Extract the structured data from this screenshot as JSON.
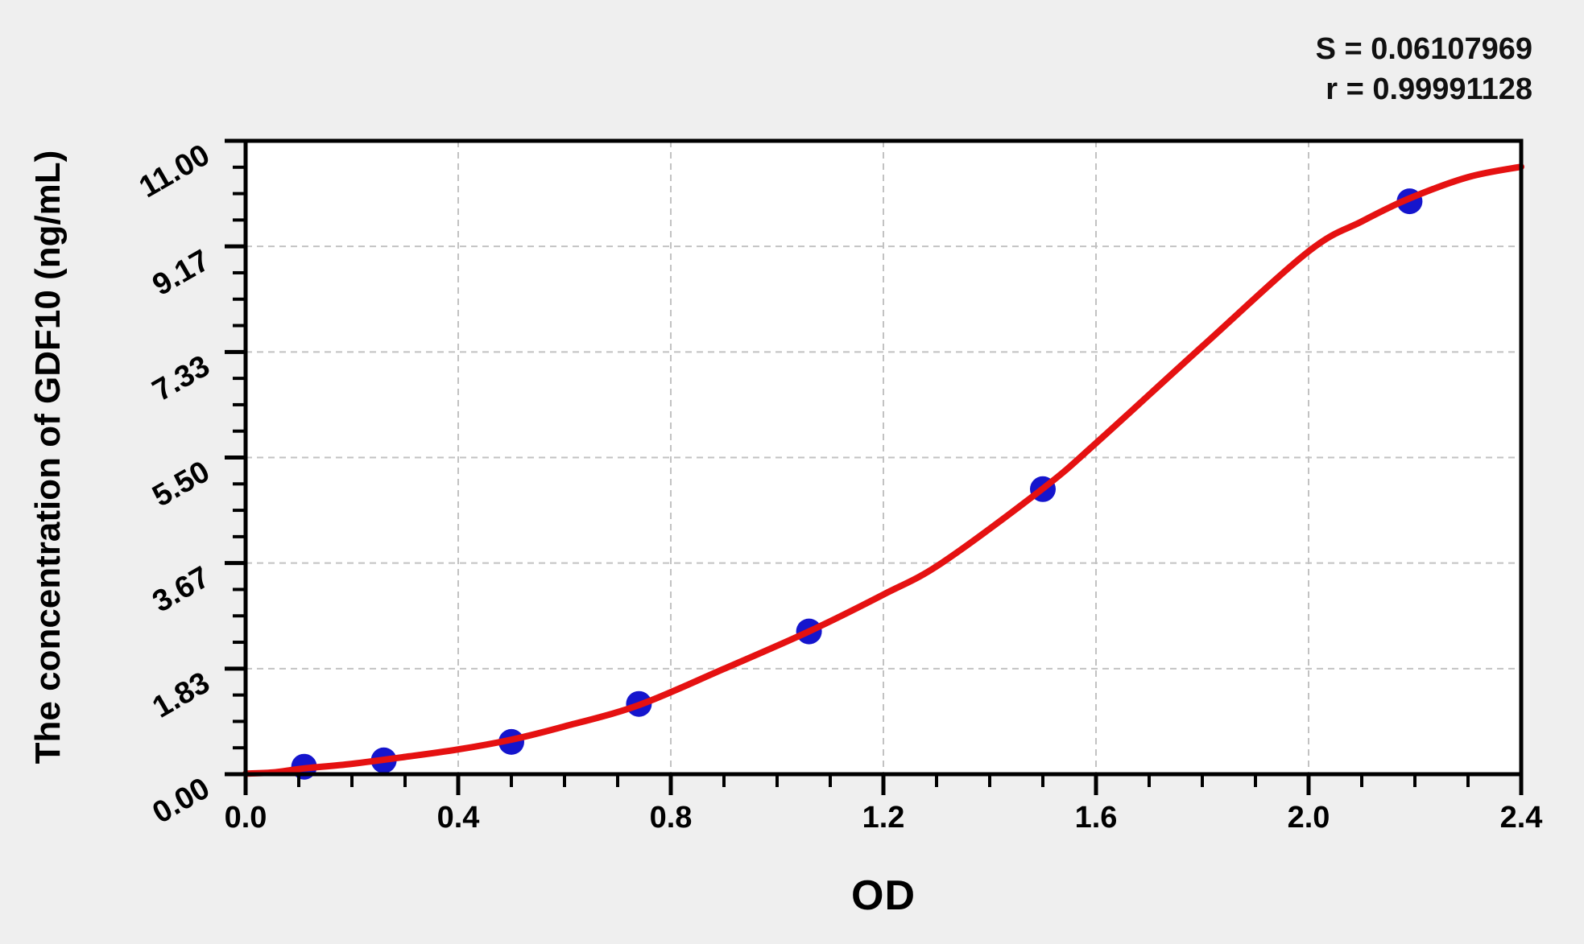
{
  "figure": {
    "background": "#efefef",
    "plot_background": "#ffffff"
  },
  "stats": {
    "s": "S = 0.06107969",
    "r": "r = 0.99991128"
  },
  "chart_data": {
    "type": "scatter",
    "title": "",
    "xlabel": "OD",
    "ylabel": "The concentration of GDF10 (ng/mL)",
    "xlim": [
      0,
      2.4
    ],
    "ylim": [
      0,
      11
    ],
    "grid": true,
    "legend": "none",
    "x_ticks": {
      "values": [
        0.0,
        0.4,
        0.8,
        1.2,
        1.6,
        2.0,
        2.4
      ],
      "labels": [
        "0.0",
        "0.4",
        "0.8",
        "1.2",
        "1.6",
        "2.0",
        "2.4"
      ],
      "minor_step": 0.1
    },
    "y_ticks": {
      "values": [
        0,
        1.833333,
        3.666667,
        5.5,
        7.333333,
        9.166667,
        11
      ],
      "labels": [
        "0.00",
        "1.83",
        "3.67",
        "5.50",
        "7.33",
        "9.17",
        "11.00"
      ],
      "minor_divisions": 4
    },
    "series": [
      {
        "name": "standard-points",
        "type": "scatter",
        "marker": "circle",
        "points": [
          [
            0.11,
            0.13
          ],
          [
            0.26,
            0.24
          ],
          [
            0.5,
            0.56
          ],
          [
            0.74,
            1.22
          ],
          [
            1.06,
            2.48
          ],
          [
            1.5,
            4.95
          ],
          [
            2.19,
            9.95
          ]
        ]
      },
      {
        "name": "fitted-curve",
        "type": "line",
        "points": [
          [
            0.0,
            0.01
          ],
          [
            0.05,
            0.03
          ],
          [
            0.11,
            0.1
          ],
          [
            0.2,
            0.18
          ],
          [
            0.3,
            0.3
          ],
          [
            0.4,
            0.43
          ],
          [
            0.5,
            0.6
          ],
          [
            0.6,
            0.83
          ],
          [
            0.74,
            1.2
          ],
          [
            0.9,
            1.83
          ],
          [
            1.06,
            2.48
          ],
          [
            1.2,
            3.12
          ],
          [
            1.31,
            3.67
          ],
          [
            1.5,
            4.96
          ],
          [
            1.6,
            5.75
          ],
          [
            1.8,
            7.43
          ],
          [
            2.0,
            9.08
          ],
          [
            2.1,
            9.6
          ],
          [
            2.19,
            10.0
          ],
          [
            2.3,
            10.37
          ],
          [
            2.4,
            10.55
          ]
        ]
      }
    ],
    "colors": {
      "curve": "#e51111",
      "points": "#1515cd",
      "grid": "#c2c2c2",
      "axis": "#000000"
    }
  }
}
